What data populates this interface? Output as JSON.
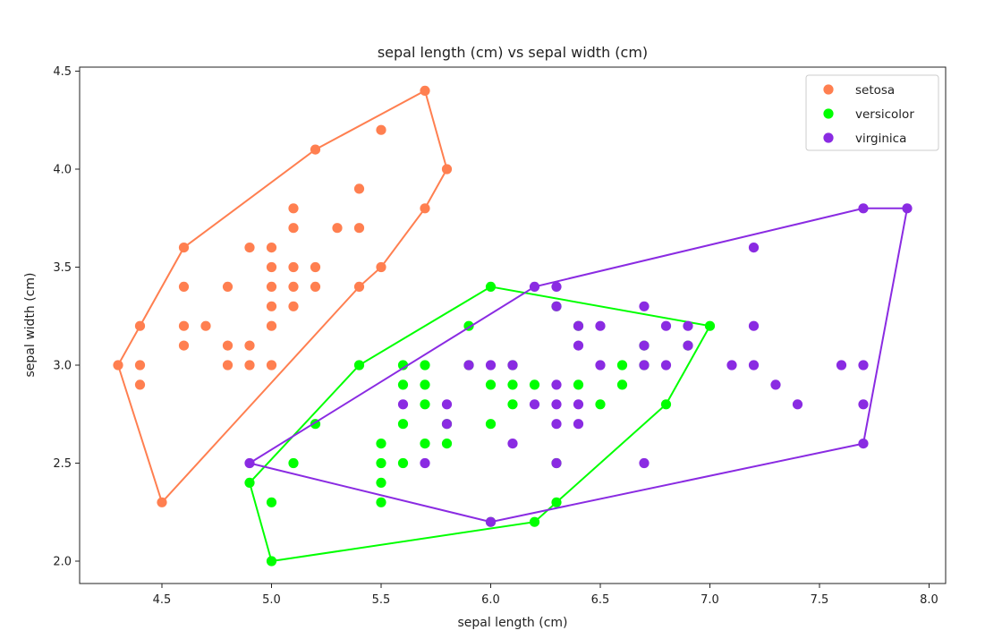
{
  "chart_data": {
    "type": "scatter",
    "title": "sepal length (cm) vs sepal width (cm)",
    "xlabel": "sepal length (cm)",
    "ylabel": "sepal width (cm)",
    "xlim": [
      4.12,
      8.08
    ],
    "ylim": [
      1.88,
      4.52
    ],
    "xticks": [
      4.5,
      5.0,
      5.5,
      6.0,
      6.5,
      7.0,
      7.5,
      8.0
    ],
    "xtick_labels": [
      "4.5",
      "5.0",
      "5.5",
      "6.0",
      "6.5",
      "7.0",
      "7.5",
      "8.0"
    ],
    "yticks": [
      2.0,
      2.5,
      3.0,
      3.5,
      4.0,
      4.5
    ],
    "ytick_labels": [
      "2.0",
      "2.5",
      "3.0",
      "3.5",
      "4.0",
      "4.5"
    ],
    "grid": false,
    "legend_position": "upper right",
    "series": [
      {
        "name": "setosa",
        "color": "#ff7f50",
        "points": [
          [
            4.3,
            3.0
          ],
          [
            4.4,
            2.9
          ],
          [
            4.4,
            3.0
          ],
          [
            4.4,
            3.2
          ],
          [
            4.5,
            2.3
          ],
          [
            4.6,
            3.1
          ],
          [
            4.6,
            3.2
          ],
          [
            4.6,
            3.4
          ],
          [
            4.6,
            3.6
          ],
          [
            4.7,
            3.2
          ],
          [
            4.8,
            3.0
          ],
          [
            4.8,
            3.1
          ],
          [
            4.8,
            3.4
          ],
          [
            4.9,
            3.0
          ],
          [
            4.9,
            3.1
          ],
          [
            4.9,
            3.6
          ],
          [
            5.0,
            3.0
          ],
          [
            5.0,
            3.2
          ],
          [
            5.0,
            3.3
          ],
          [
            5.0,
            3.4
          ],
          [
            5.0,
            3.5
          ],
          [
            5.0,
            3.6
          ],
          [
            5.1,
            3.3
          ],
          [
            5.1,
            3.4
          ],
          [
            5.1,
            3.5
          ],
          [
            5.1,
            3.7
          ],
          [
            5.1,
            3.8
          ],
          [
            5.2,
            3.4
          ],
          [
            5.2,
            3.5
          ],
          [
            5.2,
            4.1
          ],
          [
            5.3,
            3.7
          ],
          [
            5.4,
            3.4
          ],
          [
            5.4,
            3.7
          ],
          [
            5.4,
            3.9
          ],
          [
            5.5,
            3.5
          ],
          [
            5.5,
            4.2
          ],
          [
            5.7,
            3.8
          ],
          [
            5.7,
            4.4
          ],
          [
            5.8,
            4.0
          ]
        ],
        "hull": [
          [
            4.3,
            3.0
          ],
          [
            4.5,
            2.3
          ],
          [
            5.4,
            3.4
          ],
          [
            5.5,
            3.5
          ],
          [
            5.7,
            3.8
          ],
          [
            5.8,
            4.0
          ],
          [
            5.7,
            4.4
          ],
          [
            5.2,
            4.1
          ],
          [
            4.6,
            3.6
          ],
          [
            4.4,
            3.2
          ]
        ]
      },
      {
        "name": "versicolor",
        "color": "#00ff00",
        "points": [
          [
            4.9,
            2.4
          ],
          [
            5.0,
            2.0
          ],
          [
            5.0,
            2.3
          ],
          [
            5.1,
            2.5
          ],
          [
            5.2,
            2.7
          ],
          [
            5.4,
            3.0
          ],
          [
            5.5,
            2.3
          ],
          [
            5.5,
            2.4
          ],
          [
            5.5,
            2.5
          ],
          [
            5.5,
            2.6
          ],
          [
            5.6,
            2.5
          ],
          [
            5.6,
            2.7
          ],
          [
            5.6,
            2.9
          ],
          [
            5.6,
            3.0
          ],
          [
            5.7,
            2.6
          ],
          [
            5.7,
            2.8
          ],
          [
            5.7,
            2.9
          ],
          [
            5.7,
            3.0
          ],
          [
            5.8,
            2.6
          ],
          [
            5.8,
            2.7
          ],
          [
            5.9,
            3.0
          ],
          [
            5.9,
            3.2
          ],
          [
            6.0,
            2.2
          ],
          [
            6.0,
            2.7
          ],
          [
            6.0,
            2.9
          ],
          [
            6.0,
            3.4
          ],
          [
            6.1,
            2.8
          ],
          [
            6.1,
            2.9
          ],
          [
            6.1,
            3.0
          ],
          [
            6.2,
            2.2
          ],
          [
            6.2,
            2.9
          ],
          [
            6.3,
            2.3
          ],
          [
            6.3,
            2.5
          ],
          [
            6.3,
            3.3
          ],
          [
            6.4,
            2.9
          ],
          [
            6.4,
            3.2
          ],
          [
            6.5,
            2.8
          ],
          [
            6.6,
            2.9
          ],
          [
            6.6,
            3.0
          ],
          [
            6.7,
            3.0
          ],
          [
            6.7,
            3.1
          ],
          [
            6.8,
            2.8
          ],
          [
            6.9,
            3.1
          ],
          [
            7.0,
            3.2
          ]
        ],
        "hull": [
          [
            5.0,
            2.0
          ],
          [
            6.2,
            2.2
          ],
          [
            6.3,
            2.3
          ],
          [
            6.8,
            2.8
          ],
          [
            7.0,
            3.2
          ],
          [
            6.0,
            3.4
          ],
          [
            5.4,
            3.0
          ],
          [
            4.9,
            2.4
          ]
        ]
      },
      {
        "name": "virginica",
        "color": "#8a2be2",
        "points": [
          [
            4.9,
            2.5
          ],
          [
            5.6,
            2.8
          ],
          [
            5.7,
            2.5
          ],
          [
            5.8,
            2.7
          ],
          [
            5.8,
            2.8
          ],
          [
            5.9,
            3.0
          ],
          [
            6.0,
            2.2
          ],
          [
            6.0,
            3.0
          ],
          [
            6.1,
            2.6
          ],
          [
            6.1,
            3.0
          ],
          [
            6.2,
            2.8
          ],
          [
            6.2,
            3.4
          ],
          [
            6.3,
            2.5
          ],
          [
            6.3,
            2.7
          ],
          [
            6.3,
            2.8
          ],
          [
            6.3,
            2.9
          ],
          [
            6.3,
            3.3
          ],
          [
            6.3,
            3.4
          ],
          [
            6.4,
            2.7
          ],
          [
            6.4,
            2.8
          ],
          [
            6.4,
            3.1
          ],
          [
            6.4,
            3.2
          ],
          [
            6.5,
            3.0
          ],
          [
            6.5,
            3.2
          ],
          [
            6.7,
            2.5
          ],
          [
            6.7,
            3.0
          ],
          [
            6.7,
            3.1
          ],
          [
            6.7,
            3.3
          ],
          [
            6.8,
            3.0
          ],
          [
            6.8,
            3.2
          ],
          [
            6.9,
            3.1
          ],
          [
            6.9,
            3.2
          ],
          [
            7.1,
            3.0
          ],
          [
            7.2,
            3.0
          ],
          [
            7.2,
            3.2
          ],
          [
            7.2,
            3.6
          ],
          [
            7.3,
            2.9
          ],
          [
            7.4,
            2.8
          ],
          [
            7.6,
            3.0
          ],
          [
            7.7,
            2.6
          ],
          [
            7.7,
            2.8
          ],
          [
            7.7,
            3.0
          ],
          [
            7.7,
            3.8
          ],
          [
            7.9,
            3.8
          ]
        ],
        "hull": [
          [
            4.9,
            2.5
          ],
          [
            6.0,
            2.2
          ],
          [
            7.7,
            2.6
          ],
          [
            7.9,
            3.8
          ],
          [
            7.7,
            3.8
          ],
          [
            6.2,
            3.4
          ]
        ]
      }
    ]
  }
}
